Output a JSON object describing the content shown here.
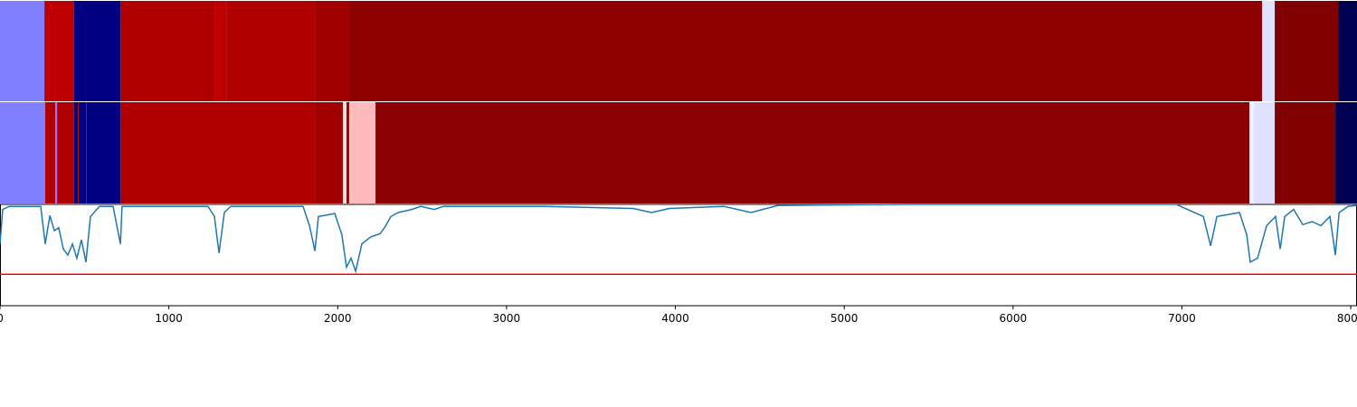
{
  "chart_data": {
    "type": "segmentation",
    "xlim": [
      0,
      8037
    ],
    "xticks": [
      0,
      1000,
      2000,
      3000,
      4000,
      5000,
      6000,
      7000,
      8000
    ],
    "bands": [
      {
        "edges": [
          0,
          263,
          439,
          713,
          1270,
          1340,
          1865,
          2068,
          7475,
          7550,
          7925,
          8037
        ],
        "colors": [
          "#7f7fff",
          "#bf0000",
          "#000080",
          "#b00000",
          "#c00000",
          "#b00000",
          "#a00000",
          "#8e0000",
          "#e0e0ff",
          "#800000",
          "#000050"
        ]
      },
      {
        "edges": [
          0,
          268,
          327,
          338,
          439,
          461,
          466,
          509,
          514,
          713,
          1865,
          2031,
          2052,
          2068,
          2224,
          7400,
          7427,
          7550,
          7909,
          8037
        ],
        "colors": [
          "#7f7fff",
          "#b00000",
          "#9f6fff",
          "#b00000",
          "#000080",
          "#b00000",
          "#000080",
          "#b00000",
          "#000080",
          "#b00000",
          "#a00000",
          "#ffe0e0",
          "#a00000",
          "#ffbbbb",
          "#8b0000",
          "#f0f0ff",
          "#e0e0ff",
          "#800000",
          "#000050"
        ]
      }
    ],
    "ylim": [
      0,
      1
    ],
    "threshold": 0.31,
    "threshold_color": "#ff0000",
    "series": [
      {
        "color": "#1f77b4",
        "x": [
          0,
          16,
          54,
          241,
          268,
          295,
          322,
          348,
          375,
          402,
          429,
          455,
          482,
          509,
          536,
          589,
          670,
          713,
          723,
          1232,
          1270,
          1297,
          1329,
          1366,
          1795,
          1833,
          1865,
          1886,
          1983,
          2025,
          2052,
          2079,
          2106,
          2143,
          2197,
          2251,
          2277,
          2315,
          2358,
          2438,
          2492,
          2572,
          2626,
          3215,
          3751,
          3858,
          3965,
          4287,
          4448,
          4608,
          5358,
          6966,
          7127,
          7170,
          7207,
          7341,
          7384,
          7405,
          7448,
          7502,
          7555,
          7582,
          7609,
          7662,
          7716,
          7770,
          7823,
          7877,
          7909,
          7931,
          7984,
          8037
        ],
        "values": [
          0.61,
          0.95,
          0.98,
          0.98,
          0.61,
          0.89,
          0.74,
          0.77,
          0.56,
          0.5,
          0.61,
          0.47,
          0.65,
          0.43,
          0.88,
          0.98,
          0.98,
          0.61,
          0.98,
          0.98,
          0.88,
          0.52,
          0.92,
          0.98,
          0.98,
          0.79,
          0.54,
          0.88,
          0.91,
          0.7,
          0.38,
          0.47,
          0.34,
          0.61,
          0.68,
          0.71,
          0.77,
          0.88,
          0.92,
          0.95,
          0.98,
          0.95,
          0.98,
          0.98,
          0.96,
          0.92,
          0.96,
          0.98,
          0.92,
          0.99,
          1.0,
          1.0,
          0.88,
          0.59,
          0.88,
          0.92,
          0.7,
          0.43,
          0.47,
          0.79,
          0.88,
          0.56,
          0.88,
          0.95,
          0.8,
          0.83,
          0.79,
          0.88,
          0.5,
          0.92,
          0.98,
          0.99
        ]
      }
    ]
  }
}
